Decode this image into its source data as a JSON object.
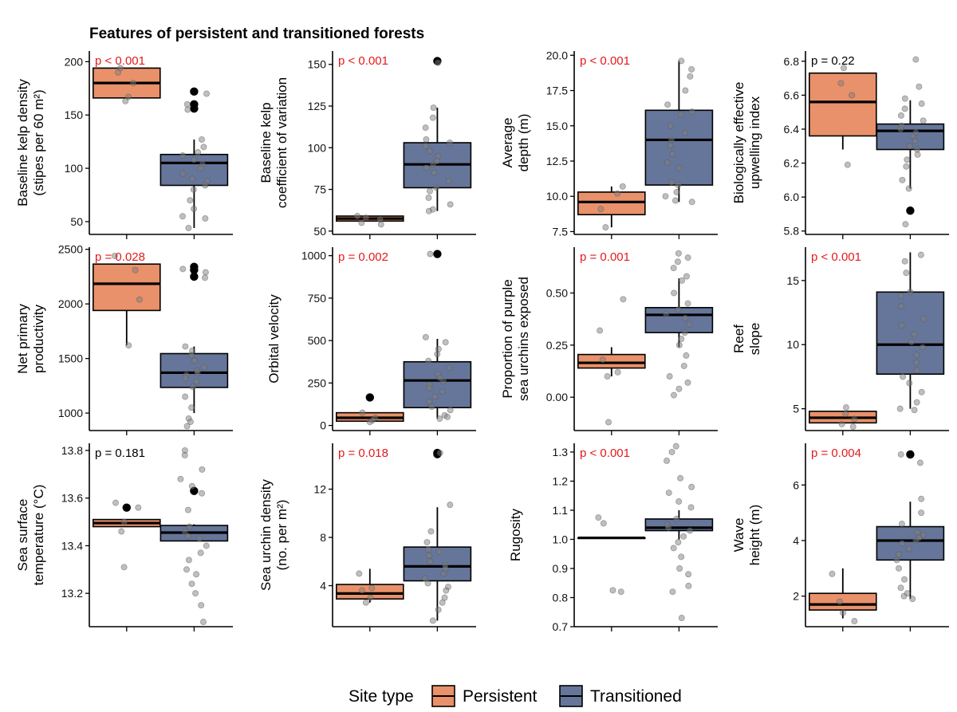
{
  "title": "Features of persistent and transitioned forests",
  "colors": {
    "persistent": "#e8916a",
    "transitioned": "#66769a",
    "significant": "#e41a1c",
    "nonsignificant": "#000000",
    "jitter": "#7f7f7f"
  },
  "legend": {
    "title": "Site type",
    "items": [
      "Persistent",
      "Transitioned"
    ]
  },
  "chart_data": [
    {
      "type": "box",
      "ylabel": [
        "Baseline kelp density",
        "(stipes per 60 m²)"
      ],
      "ylim": [
        38,
        210
      ],
      "ticks": [
        50,
        100,
        150,
        200
      ],
      "ticklabels": [
        "50",
        "100",
        "150",
        "200"
      ],
      "pvalue": "p < 0.001",
      "significant": true,
      "groups": [
        {
          "name": "Persistent",
          "q1": 166,
          "median": 180,
          "q3": 194,
          "whisker_low": 166,
          "whisker_high": 194,
          "outliers": [],
          "jitter": [
            190,
            180,
            167,
            163,
            194
          ]
        },
        {
          "name": "Transitioned",
          "q1": 84,
          "median": 105,
          "q3": 113,
          "whisker_low": 44,
          "whisker_high": 127,
          "outliers": [
            172,
            160,
            156
          ],
          "jitter": [
            170,
            160,
            155,
            127,
            120,
            115,
            112,
            108,
            104,
            100,
            95,
            90,
            88,
            84,
            80,
            70,
            62,
            55,
            53,
            44
          ]
        }
      ]
    },
    {
      "type": "box",
      "ylabel": [
        "Baseline kelp",
        "coefficient of variation"
      ],
      "ylim": [
        48,
        158
      ],
      "ticks": [
        50,
        75,
        100,
        125,
        150
      ],
      "ticklabels": [
        "50",
        "75",
        "100",
        "125",
        "150"
      ],
      "pvalue": "p < 0.001",
      "significant": true,
      "groups": [
        {
          "name": "Persistent",
          "q1": 56,
          "median": 57.5,
          "q3": 59,
          "whisker_low": 56,
          "whisker_high": 59,
          "outliers": [],
          "jitter": [
            59,
            58,
            57,
            55,
            54
          ]
        },
        {
          "name": "Transitioned",
          "q1": 76,
          "median": 90,
          "q3": 103,
          "whisker_low": 62,
          "whisker_high": 124,
          "outliers": [
            152
          ],
          "jitter": [
            151,
            124,
            118,
            112,
            105,
            103,
            101,
            98,
            95,
            92,
            90,
            88,
            85,
            80,
            76,
            74,
            70,
            66,
            63,
            62
          ]
        }
      ]
    },
    {
      "type": "box",
      "ylabel": [
        "Average",
        "depth (m)"
      ],
      "ylim": [
        7.3,
        20.3
      ],
      "ticks": [
        7.5,
        10,
        12.5,
        15,
        17.5,
        20
      ],
      "ticklabels": [
        "7.5",
        "10.0",
        "12.5",
        "15.0",
        "17.5",
        "20.0"
      ],
      "pvalue": "p < 0.001",
      "significant": true,
      "groups": [
        {
          "name": "Persistent",
          "q1": 8.7,
          "median": 9.6,
          "q3": 10.3,
          "whisker_low": 7.8,
          "whisker_high": 10.7,
          "outliers": [],
          "jitter": [
            10.7,
            10.2,
            9.1,
            7.8
          ]
        },
        {
          "name": "Transitioned",
          "q1": 10.8,
          "median": 14,
          "q3": 16.1,
          "whisker_low": 9.6,
          "whisker_high": 19.6,
          "outliers": [],
          "jitter": [
            19.6,
            19.0,
            18.5,
            17.5,
            16.5,
            16.0,
            15.8,
            15.0,
            14.5,
            14.0,
            13.6,
            13.0,
            12.4,
            12.0,
            11.0,
            10.8,
            10.3,
            10.0,
            9.7,
            9.6
          ]
        }
      ]
    },
    {
      "type": "box",
      "ylabel": [
        "Biologically effective",
        "upwelling index"
      ],
      "ylim": [
        5.78,
        6.86
      ],
      "ticks": [
        5.8,
        6.0,
        6.2,
        6.4,
        6.6,
        6.8
      ],
      "ticklabels": [
        "5.8",
        "6.0",
        "6.2",
        "6.4",
        "6.6",
        "6.8"
      ],
      "pvalue": "p =  0.22",
      "significant": false,
      "groups": [
        {
          "name": "Persistent",
          "q1": 6.36,
          "median": 6.56,
          "q3": 6.73,
          "whisker_low": 6.28,
          "whisker_high": 6.73,
          "outliers": [],
          "jitter": [
            6.76,
            6.67,
            6.6,
            6.19
          ]
        },
        {
          "name": "Transitioned",
          "q1": 6.28,
          "median": 6.39,
          "q3": 6.43,
          "whisker_low": 6.05,
          "whisker_high": 6.57,
          "outliers": [
            5.92
          ],
          "jitter": [
            6.81,
            6.65,
            6.58,
            6.55,
            6.52,
            6.48,
            6.45,
            6.42,
            6.4,
            6.38,
            6.36,
            6.33,
            6.3,
            6.28,
            6.25,
            6.22,
            6.18,
            6.1,
            6.05,
            5.84
          ]
        }
      ]
    },
    {
      "type": "box",
      "ylabel": [
        "Net primary",
        "productivity"
      ],
      "ylim": [
        840,
        2520
      ],
      "ticks": [
        1000,
        1500,
        2000,
        2500
      ],
      "ticklabels": [
        "1000",
        "1500",
        "2000",
        "2500"
      ],
      "pvalue": "p =  0.028",
      "significant": true,
      "groups": [
        {
          "name": "Persistent",
          "q1": 1940,
          "median": 2185,
          "q3": 2365,
          "whisker_low": 1620,
          "whisker_high": 2365,
          "outliers": [],
          "jitter": [
            2440,
            2310,
            2040,
            1620
          ]
        },
        {
          "name": "Transitioned",
          "q1": 1235,
          "median": 1370,
          "q3": 1545,
          "whisker_low": 1000,
          "whisker_high": 1610,
          "outliers": [
            2340,
            2310,
            2250
          ],
          "jitter": [
            2320,
            2290,
            2240,
            1610,
            1570,
            1530,
            1480,
            1420,
            1390,
            1370,
            1350,
            1320,
            1290,
            1240,
            1150,
            1050,
            950,
            920,
            880
          ]
        }
      ]
    },
    {
      "type": "box",
      "ylabel": [
        "Orbital velocity"
      ],
      "ylim": [
        -30,
        1050
      ],
      "ticks": [
        0,
        250,
        500,
        750,
        1000
      ],
      "ticklabels": [
        "0",
        "250",
        "500",
        "750",
        "1000"
      ],
      "pvalue": "p =  0.002",
      "significant": true,
      "groups": [
        {
          "name": "Persistent",
          "q1": 25,
          "median": 45,
          "q3": 75,
          "whisker_low": 25,
          "whisker_high": 75,
          "outliers": [
            165
          ],
          "jitter": [
            75,
            45,
            30,
            20
          ]
        },
        {
          "name": "Transitioned",
          "q1": 105,
          "median": 265,
          "q3": 375,
          "whisker_low": 40,
          "whisker_high": 510,
          "outliers": [
            1010
          ],
          "jitter": [
            1010,
            520,
            490,
            450,
            420,
            380,
            340,
            300,
            280,
            260,
            240,
            220,
            200,
            170,
            140,
            110,
            90,
            60,
            50,
            40
          ]
        }
      ]
    },
    {
      "type": "box",
      "ylabel": [
        "Proportion of purple",
        "sea urchins exposed"
      ],
      "ylim": [
        -0.16,
        0.72
      ],
      "ticks": [
        0.0,
        0.25,
        0.5
      ],
      "ticklabels": [
        "0.00",
        "0.25",
        "0.50"
      ],
      "pvalue": "p =  0.001",
      "significant": true,
      "groups": [
        {
          "name": "Persistent",
          "q1": 0.14,
          "median": 0.165,
          "q3": 0.205,
          "whisker_low": 0.1,
          "whisker_high": 0.24,
          "outliers": [],
          "jitter": [
            0.47,
            0.32,
            0.18,
            0.12,
            0.1,
            -0.12
          ]
        },
        {
          "name": "Transitioned",
          "q1": 0.31,
          "median": 0.395,
          "q3": 0.43,
          "whisker_low": 0.24,
          "whisker_high": 0.57,
          "outliers": [],
          "jitter": [
            0.69,
            0.67,
            0.65,
            0.62,
            0.58,
            0.56,
            0.5,
            0.45,
            0.42,
            0.4,
            0.38,
            0.35,
            0.31,
            0.28,
            0.25,
            0.2,
            0.15,
            0.1,
            0.07,
            0.04,
            0.01
          ]
        }
      ]
    },
    {
      "type": "box",
      "ylabel": [
        "Reef",
        "slope"
      ],
      "ylim": [
        3.3,
        17.6
      ],
      "ticks": [
        5,
        10,
        15
      ],
      "ticklabels": [
        "5",
        "10",
        "15"
      ],
      "pvalue": "p < 0.001",
      "significant": true,
      "groups": [
        {
          "name": "Persistent",
          "q1": 3.9,
          "median": 4.3,
          "q3": 4.8,
          "whisker_low": 3.9,
          "whisker_high": 4.8,
          "outliers": [],
          "jitter": [
            5.1,
            4.6,
            4.2,
            3.8,
            3.6
          ]
        },
        {
          "name": "Transitioned",
          "q1": 7.7,
          "median": 10,
          "q3": 14.1,
          "whisker_low": 5,
          "whisker_high": 17.2,
          "outliers": [],
          "jitter": [
            17.0,
            16.5,
            15.6,
            14.1,
            13.8,
            13.0,
            12.0,
            11.5,
            10.8,
            10.2,
            9.8,
            9.2,
            8.6,
            8.0,
            7.5,
            7.0,
            6.3,
            5.5,
            5.0,
            4.9
          ]
        }
      ]
    },
    {
      "type": "box",
      "ylabel": [
        "Sea surface",
        "temperature (°C)"
      ],
      "ylim": [
        13.06,
        13.83
      ],
      "ticks": [
        13.2,
        13.4,
        13.6,
        13.8
      ],
      "ticklabels": [
        "13.2",
        "13.4",
        "13.6",
        "13.8"
      ],
      "pvalue": "p =  0.181",
      "significant": false,
      "groups": [
        {
          "name": "Persistent",
          "q1": 13.48,
          "median": 13.495,
          "q3": 13.51,
          "whisker_low": 13.48,
          "whisker_high": 13.51,
          "outliers": [
            13.56
          ],
          "jitter": [
            13.58,
            13.56,
            13.5,
            13.46,
            13.31
          ]
        },
        {
          "name": "Transitioned",
          "q1": 13.42,
          "median": 13.455,
          "q3": 13.485,
          "whisker_low": 13.42,
          "whisker_high": 13.49,
          "outliers": [
            13.63
          ],
          "jitter": [
            13.8,
            13.78,
            13.72,
            13.68,
            13.65,
            13.62,
            13.55,
            13.48,
            13.46,
            13.44,
            13.43,
            13.4,
            13.37,
            13.34,
            13.3,
            13.28,
            13.24,
            13.2,
            13.15,
            13.08
          ]
        }
      ]
    },
    {
      "type": "box",
      "ylabel": [
        "Sea urchin density",
        "(no. per m²)"
      ],
      "ylim": [
        0.6,
        15.8
      ],
      "ticks": [
        4,
        8,
        12
      ],
      "ticklabels": [
        "4",
        "8",
        "12"
      ],
      "pvalue": "p =  0.018",
      "significant": true,
      "groups": [
        {
          "name": "Persistent",
          "q1": 2.9,
          "median": 3.35,
          "q3": 4.1,
          "whisker_low": 2.6,
          "whisker_high": 5.4,
          "outliers": [],
          "jitter": [
            5.0,
            3.8,
            3.6,
            3.0,
            2.6
          ]
        },
        {
          "name": "Transitioned",
          "q1": 4.4,
          "median": 5.6,
          "q3": 7.2,
          "whisker_low": 1.1,
          "whisker_high": 10.5,
          "outliers": [
            15.0,
            14.9
          ],
          "jitter": [
            15.0,
            10.7,
            8.5,
            7.6,
            7.0,
            6.8,
            6.5,
            6.0,
            5.7,
            5.4,
            5.0,
            4.6,
            4.2,
            3.9,
            3.6,
            3.0,
            2.6,
            2.0,
            1.1
          ]
        }
      ]
    },
    {
      "type": "box",
      "ylabel": [
        "Rugosity"
      ],
      "ylim": [
        0.7,
        1.33
      ],
      "ticks": [
        0.7,
        0.8,
        0.9,
        1.0,
        1.1,
        1.2,
        1.3
      ],
      "ticklabels": [
        "0.7",
        "0.8",
        "0.9",
        "1.0",
        "1.1",
        "1.2",
        "1.3"
      ],
      "pvalue": "p < 0.001",
      "significant": true,
      "groups": [
        {
          "name": "Persistent",
          "q1": 1.005,
          "median": 1.005,
          "q3": 1.005,
          "whisker_low": 1.005,
          "whisker_high": 1.005,
          "outliers": [],
          "jitter": [
            1.075,
            1.055,
            0.825,
            0.82
          ]
        },
        {
          "name": "Transitioned",
          "q1": 1.03,
          "median": 1.04,
          "q3": 1.07,
          "whisker_low": 1.0,
          "whisker_high": 1.1,
          "outliers": [],
          "jitter": [
            1.32,
            1.3,
            1.27,
            1.21,
            1.18,
            1.16,
            1.13,
            1.11,
            1.07,
            1.05,
            1.04,
            1.03,
            1.01,
            0.99,
            0.97,
            0.94,
            0.9,
            0.88,
            0.84,
            0.82,
            0.73
          ]
        }
      ]
    },
    {
      "type": "box",
      "ylabel": [
        "Wave",
        "height (m)"
      ],
      "ylim": [
        0.9,
        7.5
      ],
      "ticks": [
        2,
        4,
        6
      ],
      "ticklabels": [
        "2",
        "4",
        "6"
      ],
      "pvalue": "p =  0.004",
      "significant": true,
      "groups": [
        {
          "name": "Persistent",
          "q1": 1.5,
          "median": 1.7,
          "q3": 2.1,
          "whisker_low": 1.2,
          "whisker_high": 3.0,
          "outliers": [],
          "jitter": [
            2.8,
            1.8,
            1.4,
            1.1
          ]
        },
        {
          "name": "Transitioned",
          "q1": 3.3,
          "median": 4.0,
          "q3": 4.5,
          "whisker_low": 1.9,
          "whisker_high": 5.4,
          "outliers": [
            7.1
          ],
          "jitter": [
            7.1,
            6.8,
            5.5,
            5.0,
            4.6,
            4.3,
            4.2,
            4.1,
            4.0,
            3.9,
            3.7,
            3.5,
            3.3,
            3.0,
            2.6,
            2.3,
            2.1,
            2.0,
            1.9
          ]
        }
      ]
    }
  ]
}
